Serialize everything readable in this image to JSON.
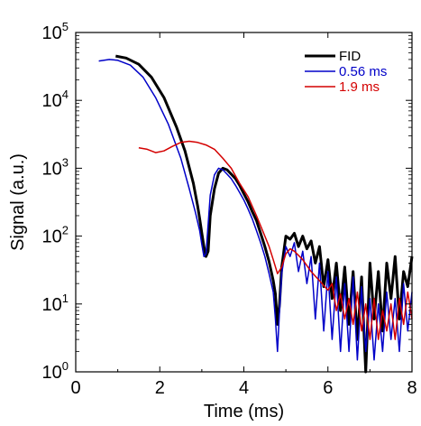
{
  "chart_data": {
    "type": "line",
    "title": "",
    "xlabel": "Time (ms)",
    "ylabel": "Signal (a.u.)",
    "xlim": [
      0,
      8
    ],
    "ylim": [
      1,
      100000
    ],
    "yscale": "log",
    "grid": false,
    "legend_position": "top-right",
    "x_ticks": [
      {
        "value": 0,
        "label": "0"
      },
      {
        "value": 2,
        "label": "2"
      },
      {
        "value": 4,
        "label": "4"
      },
      {
        "value": 6,
        "label": "6"
      },
      {
        "value": 8,
        "label": "8"
      }
    ],
    "y_ticks": [
      {
        "value": 1,
        "base": "10",
        "exp": "0"
      },
      {
        "value": 10,
        "base": "10",
        "exp": "1"
      },
      {
        "value": 100,
        "base": "10",
        "exp": "2"
      },
      {
        "value": 1000,
        "base": "10",
        "exp": "3"
      },
      {
        "value": 10000,
        "base": "10",
        "exp": "4"
      },
      {
        "value": 100000,
        "base": "10",
        "exp": "5"
      }
    ],
    "series": [
      {
        "name": "FID",
        "color": "#000000",
        "line_width": 3,
        "x": [
          0.95,
          1.2,
          1.5,
          1.8,
          2.1,
          2.4,
          2.6,
          2.8,
          2.9,
          2.95,
          3.0,
          3.05,
          3.1,
          3.15,
          3.2,
          3.3,
          3.4,
          3.5,
          3.6,
          3.7,
          3.8,
          3.9,
          4.0,
          4.1,
          4.2,
          4.3,
          4.4,
          4.5,
          4.6,
          4.7,
          4.75,
          4.8,
          4.85,
          4.9,
          5.0,
          5.1,
          5.2,
          5.3,
          5.4,
          5.5,
          5.6,
          5.7,
          5.8,
          5.9,
          6.0,
          6.1,
          6.2,
          6.3,
          6.4,
          6.5,
          6.6,
          6.7,
          6.8,
          6.9,
          7.0,
          7.1,
          7.2,
          7.3,
          7.4,
          7.5,
          7.6,
          7.7,
          7.8,
          7.9,
          8.0
        ],
        "y": [
          45000,
          42000,
          34000,
          22000,
          11000,
          4000,
          1800,
          600,
          280,
          180,
          110,
          70,
          50,
          60,
          200,
          500,
          850,
          1000,
          950,
          820,
          700,
          560,
          420,
          320,
          230,
          170,
          110,
          70,
          42,
          22,
          14,
          5,
          10,
          35,
          100,
          90,
          110,
          70,
          100,
          65,
          85,
          40,
          70,
          18,
          45,
          12,
          40,
          8,
          35,
          5,
          30,
          3,
          25,
          1,
          40,
          6,
          30,
          4,
          40,
          12,
          50,
          6,
          30,
          18,
          50
        ]
      },
      {
        "name": "0.56 ms",
        "color": "#0000c8",
        "line_width": 1.5,
        "x": [
          0.55,
          0.8,
          1.0,
          1.3,
          1.6,
          1.9,
          2.2,
          2.5,
          2.7,
          2.85,
          2.95,
          3.0,
          3.05,
          3.1,
          3.15,
          3.2,
          3.3,
          3.4,
          3.5,
          3.6,
          3.7,
          3.8,
          3.9,
          4.0,
          4.1,
          4.2,
          4.3,
          4.4,
          4.5,
          4.6,
          4.7,
          4.75,
          4.8,
          4.85,
          4.9,
          5.0,
          5.1,
          5.2,
          5.3,
          5.4,
          5.5,
          5.6,
          5.7,
          5.8,
          5.9,
          6.0,
          6.1,
          6.2,
          6.3,
          6.4,
          6.5,
          6.6,
          6.7,
          6.8,
          6.9,
          7.0,
          7.1,
          7.2,
          7.3,
          7.4,
          7.5,
          7.6,
          7.7,
          7.8,
          7.9,
          8.0
        ],
        "y": [
          38000,
          40000,
          39000,
          33000,
          22000,
          11000,
          4500,
          1400,
          500,
          220,
          120,
          75,
          50,
          55,
          150,
          400,
          800,
          1000,
          950,
          820,
          700,
          560,
          440,
          340,
          250,
          180,
          120,
          80,
          50,
          28,
          15,
          6,
          2,
          8,
          28,
          70,
          50,
          80,
          30,
          60,
          20,
          50,
          6,
          40,
          4,
          30,
          3,
          25,
          2,
          20,
          2,
          25,
          1.5,
          18,
          2,
          12,
          1.5,
          10,
          2,
          15,
          3,
          12,
          2,
          20,
          4,
          15
        ]
      },
      {
        "name": "1.9 ms",
        "color": "#d40000",
        "line_width": 1.5,
        "x": [
          1.5,
          1.7,
          1.9,
          2.1,
          2.3,
          2.5,
          2.7,
          2.9,
          3.1,
          3.3,
          3.5,
          3.7,
          3.9,
          4.1,
          4.3,
          4.5,
          4.6,
          4.7,
          4.8,
          4.9,
          5.0,
          5.1,
          5.2,
          5.4,
          5.6,
          5.8,
          6.0,
          6.1,
          6.2,
          6.3,
          6.4,
          6.5,
          6.6,
          6.7,
          6.8,
          6.9,
          7.0,
          7.1,
          7.2,
          7.3,
          7.4,
          7.5,
          7.6,
          7.7,
          7.8,
          7.9,
          8.0
        ],
        "y": [
          2000,
          1900,
          1700,
          1800,
          2100,
          2400,
          2500,
          2400,
          2200,
          1900,
          1400,
          1000,
          600,
          380,
          200,
          100,
          70,
          45,
          28,
          35,
          55,
          65,
          60,
          45,
          30,
          22,
          16,
          20,
          8,
          14,
          6,
          12,
          5,
          15,
          4,
          10,
          3,
          12,
          3,
          8,
          4,
          10,
          3,
          12,
          5,
          15,
          6
        ]
      }
    ]
  }
}
